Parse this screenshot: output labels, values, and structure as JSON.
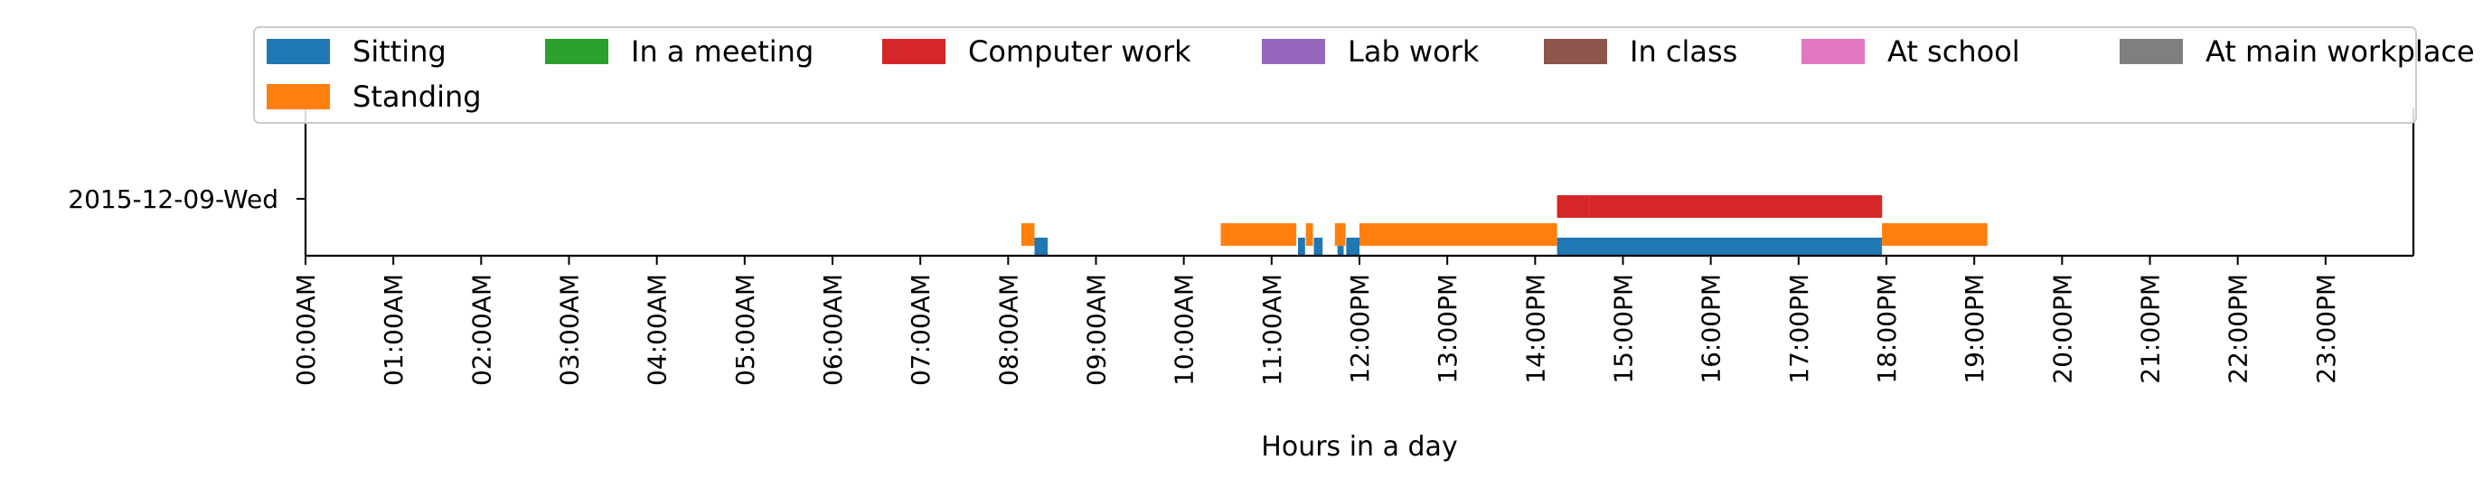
{
  "chart_data": {
    "type": "bar",
    "orientation": "horizontal-timeline",
    "title": "",
    "xlabel": "Hours in a day",
    "ylabel": "",
    "xlim": [
      0,
      24
    ],
    "x_tick_labels": [
      "00:00AM",
      "01:00AM",
      "02:00AM",
      "03:00AM",
      "04:00AM",
      "05:00AM",
      "06:00AM",
      "07:00AM",
      "08:00AM",
      "09:00AM",
      "10:00AM",
      "11:00AM",
      "12:00PM",
      "13:00PM",
      "14:00PM",
      "15:00PM",
      "16:00PM",
      "17:00PM",
      "18:00PM",
      "19:00PM",
      "20:00PM",
      "21:00PM",
      "22:00PM",
      "23:00PM"
    ],
    "y_categories": [
      "2015-12-09-Wed"
    ],
    "grid": false,
    "legend_position": "top",
    "series": [
      {
        "name": "Sitting",
        "color": "#1f77b4",
        "track": 0,
        "intervals": [
          [
            8.3,
            8.45
          ],
          [
            11.3,
            11.38
          ],
          [
            11.48,
            11.58
          ],
          [
            11.75,
            11.82
          ],
          [
            11.85,
            12.0
          ],
          [
            14.25,
            17.95
          ]
        ]
      },
      {
        "name": "Standing",
        "color": "#ff7f0e",
        "track": 1,
        "intervals": [
          [
            8.15,
            8.3
          ],
          [
            10.42,
            11.28
          ],
          [
            11.39,
            11.47
          ],
          [
            11.72,
            11.84
          ],
          [
            12.0,
            14.25
          ],
          [
            17.95,
            19.15
          ]
        ]
      },
      {
        "name": "In a meeting",
        "color": "#2ca02c",
        "track": 2,
        "intervals": []
      },
      {
        "name": "Computer work",
        "color": "#d62728",
        "track": 3,
        "intervals": [
          [
            14.25,
            14.62
          ],
          [
            14.62,
            17.95
          ]
        ]
      },
      {
        "name": "Lab work",
        "color": "#9467bd",
        "track": 4,
        "intervals": []
      },
      {
        "name": "In class",
        "color": "#8c564b",
        "track": 5,
        "intervals": []
      },
      {
        "name": "At school",
        "color": "#e377c2",
        "track": 6,
        "intervals": []
      },
      {
        "name": "At main workplace",
        "color": "#7f7f7f",
        "track": 7,
        "intervals": []
      }
    ]
  }
}
